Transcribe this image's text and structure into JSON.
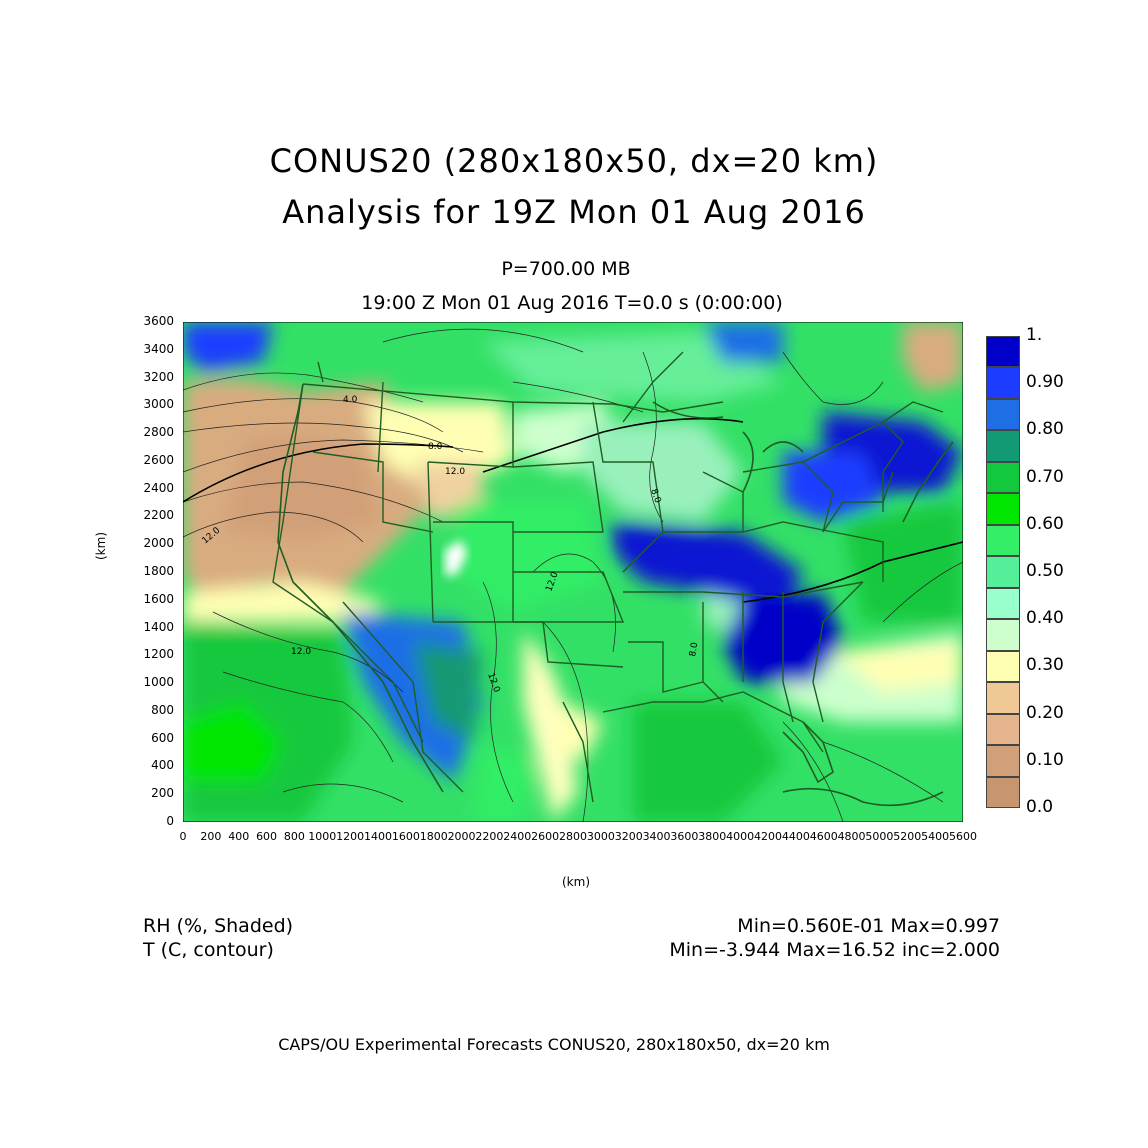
{
  "title_line1": "CONUS20 (280x180x50, dx=20 km)",
  "title_line2": "Analysis for 19Z Mon 01 Aug 2016",
  "level": "P=700.00 MB",
  "time_line": "19:00 Z Mon 01 Aug 2016    T=0.0 s (0:00:00)",
  "axes": {
    "xlabel": "(km)",
    "ylabel": "(km)",
    "xticks": [
      "0",
      "200",
      "400",
      "600",
      "800",
      "1000",
      "1200",
      "1400",
      "1600",
      "1800",
      "2000",
      "2200",
      "2400",
      "2600",
      "2800",
      "3000",
      "3200",
      "3400",
      "3600",
      "3800",
      "4000",
      "4200",
      "4400",
      "4600",
      "4800",
      "5000",
      "5200",
      "5400",
      "5600"
    ],
    "yticks": [
      "3600",
      "3400",
      "3200",
      "3000",
      "2800",
      "2600",
      "2400",
      "2200",
      "2000",
      "1800",
      "1600",
      "1400",
      "1200",
      "1000",
      "800",
      "600",
      "400",
      "200",
      "0"
    ],
    "xlim": [
      0,
      5600
    ],
    "ylim": [
      0,
      3600
    ]
  },
  "legend": {
    "labels": [
      "1.",
      "0.90",
      "0.80",
      "0.70",
      "0.60",
      "0.50",
      "0.40",
      "0.30",
      "0.20",
      "0.10",
      "0.0"
    ],
    "colors": [
      "#0000c8",
      "#1e3cff",
      "#1e6ee6",
      "#139973",
      "#12c83c",
      "#00e600",
      "#33ee66",
      "#55ee99",
      "#99ffcc",
      "#ccffcc",
      "#ffffb4",
      "#f0c896",
      "#e6b48c",
      "#d2a078",
      "#c8966e"
    ]
  },
  "contour_labels": [
    "4.0",
    "8.0",
    "12.0",
    "12.0",
    "12.0",
    "12.0",
    "12.0",
    "8.0",
    "8.0"
  ],
  "fields": {
    "rh_label": "RH (%, Shaded)",
    "rh_stats": "Min=0.560E-01 Max=0.997",
    "t_label": "T (C, contour)",
    "t_stats": "Min=-3.944 Max=16.52 inc=2.000"
  },
  "footer": "CAPS/OU Experimental Forecasts  CONUS20, 280x180x50, dx=20 km"
}
